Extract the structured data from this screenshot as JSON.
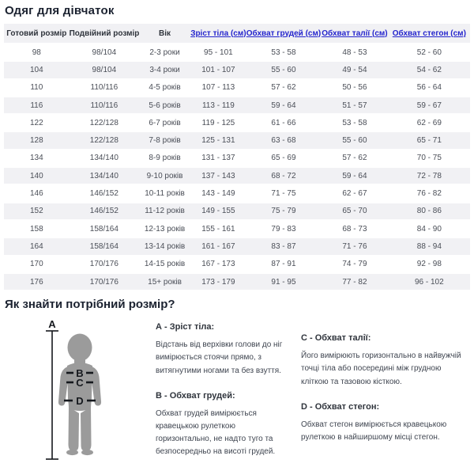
{
  "page": {
    "title": "Одяг для дівчаток"
  },
  "table": {
    "headers": [
      {
        "label": "Готовий розмір",
        "link": false
      },
      {
        "label": "Подвійний розмір",
        "link": false
      },
      {
        "label": "Вік",
        "link": false
      },
      {
        "label": "Зріст тіла (см)",
        "link": true
      },
      {
        "label": "Обхват грудей (см)",
        "link": true
      },
      {
        "label": "Обхват талії (см)",
        "link": true
      },
      {
        "label": "Обхват стегон (см)",
        "link": true
      }
    ],
    "rows": [
      [
        "98",
        "98/104",
        "2-3 роки",
        "95 - 101",
        "53 - 58",
        "48 - 53",
        "52 - 60"
      ],
      [
        "104",
        "98/104",
        "3-4 роки",
        "101 - 107",
        "55 - 60",
        "49 - 54",
        "54 - 62"
      ],
      [
        "110",
        "110/116",
        "4-5 років",
        "107 - 113",
        "57 - 62",
        "50 - 56",
        "56 - 64"
      ],
      [
        "116",
        "110/116",
        "5-6 років",
        "113 - 119",
        "59 - 64",
        "51 - 57",
        "59 - 67"
      ],
      [
        "122",
        "122/128",
        "6-7 років",
        "119 - 125",
        "61 - 66",
        "53 - 58",
        "62 - 69"
      ],
      [
        "128",
        "122/128",
        "7-8 років",
        "125 - 131",
        "63 - 68",
        "55 - 60",
        "65 - 71"
      ],
      [
        "134",
        "134/140",
        "8-9 років",
        "131 - 137",
        "65 - 69",
        "57 - 62",
        "70 - 75"
      ],
      [
        "140",
        "134/140",
        "9-10 років",
        "137 - 143",
        "68 - 72",
        "59 - 64",
        "72 - 78"
      ],
      [
        "146",
        "146/152",
        "10-11 років",
        "143 - 149",
        "71 - 75",
        "62 - 67",
        "76 - 82"
      ],
      [
        "152",
        "146/152",
        "11-12 років",
        "149 - 155",
        "75 - 79",
        "65 - 70",
        "80 - 86"
      ],
      [
        "158",
        "158/164",
        "12-13 років",
        "155 - 161",
        "79 - 83",
        "68 - 73",
        "84 - 90"
      ],
      [
        "164",
        "158/164",
        "13-14 років",
        "161 - 167",
        "83 - 87",
        "71 - 76",
        "88 - 94"
      ],
      [
        "170",
        "170/176",
        "14-15 років",
        "167 - 173",
        "87 - 91",
        "74 - 79",
        "92 - 98"
      ],
      [
        "176",
        "170/176",
        "15+ років",
        "173 - 179",
        "91 - 95",
        "77 - 82",
        "96 - 102"
      ]
    ]
  },
  "guide": {
    "title": "Як знайти потрібний розмір?",
    "figure_labels": {
      "height": "A",
      "chest": "B",
      "waist": "C",
      "hips": "D"
    },
    "items": [
      {
        "heading": "А - Зріст тіла:",
        "text": "Відстань від верхівки голови до ніг вимірюється стоячи прямо, з витягнутими ногами та без взуття."
      },
      {
        "heading": "В - Обхват грудей:",
        "text": "Обхват грудей вимірюється кравецькою рулеткою горизонтально, не надто туго та безпосередньо на висоті грудей."
      },
      {
        "heading": "С - Обхват талії:",
        "text": "Його вимірюють горизонтально в найвужчій точці тіла або посередині між грудною кліткою та тазовою кісткою."
      },
      {
        "heading": "D - Обхват стегон:",
        "text": "Обхват стегон вимірюється кравецькою рулеткою в найширшому місці стегон."
      }
    ]
  },
  "colors": {
    "link_blue": "#2424cd",
    "row_stripe": "#f1f1f4",
    "silhouette_gray": "#9b9b9b",
    "title_dark": "#1b2230",
    "body_text": "#3f4550"
  }
}
